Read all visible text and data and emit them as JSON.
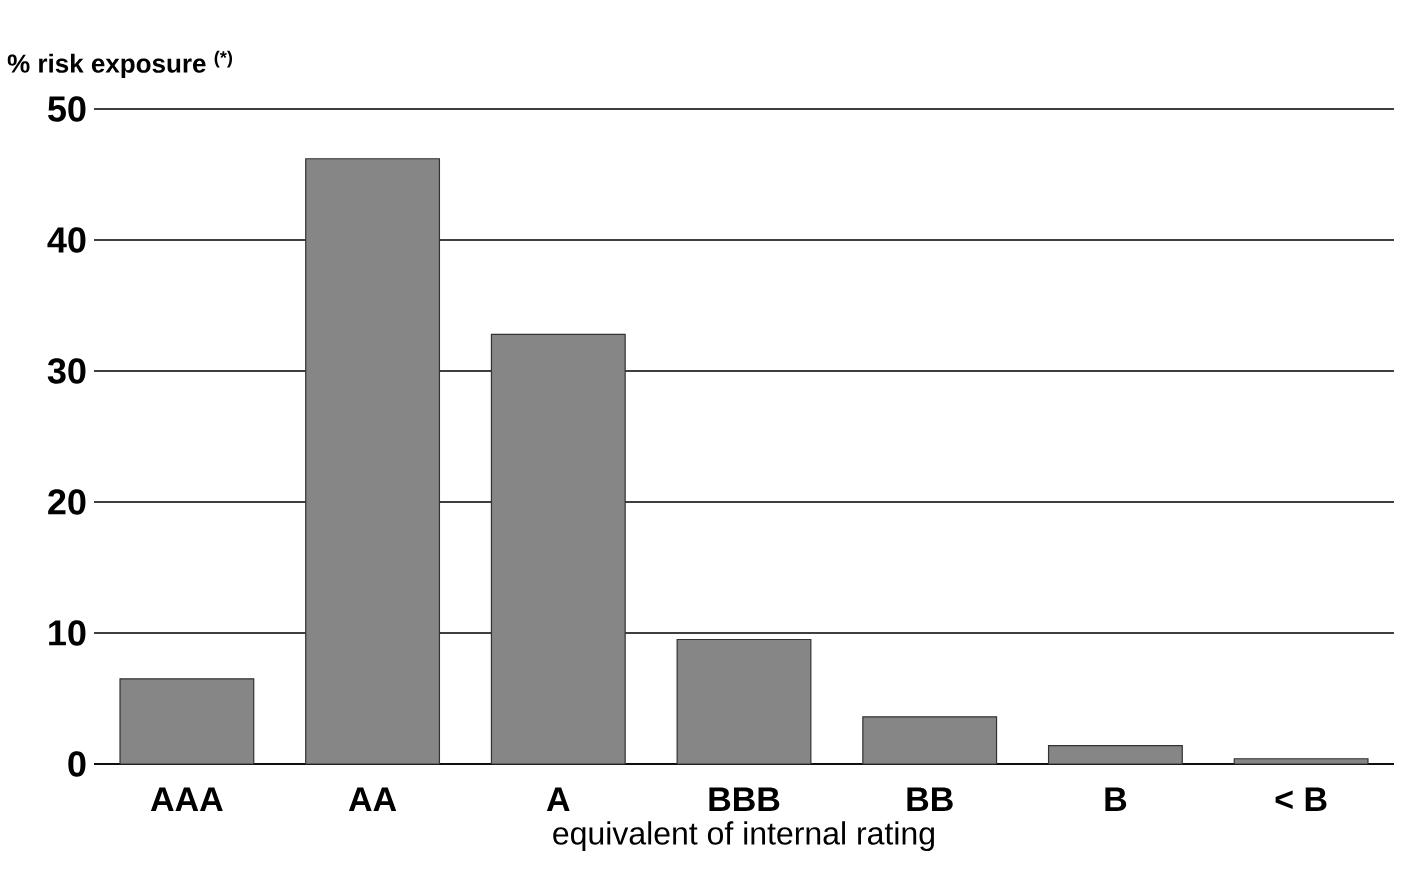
{
  "chart_data": {
    "type": "bar",
    "ylabel": "% risk exposure $^{(*)}$",
    "xlabel": "equivalent of internal rating",
    "categories": [
      "AAA",
      "AA",
      "A",
      "BBB",
      "BB",
      "B",
      "< B"
    ],
    "values": [
      6.5,
      46.2,
      32.8,
      9.5,
      3.6,
      1.4,
      0.4
    ],
    "color": "#868686",
    "ylim": [
      0,
      50
    ],
    "yticks": [
      0,
      10,
      20,
      30,
      40,
      50
    ],
    "grid": "y"
  }
}
